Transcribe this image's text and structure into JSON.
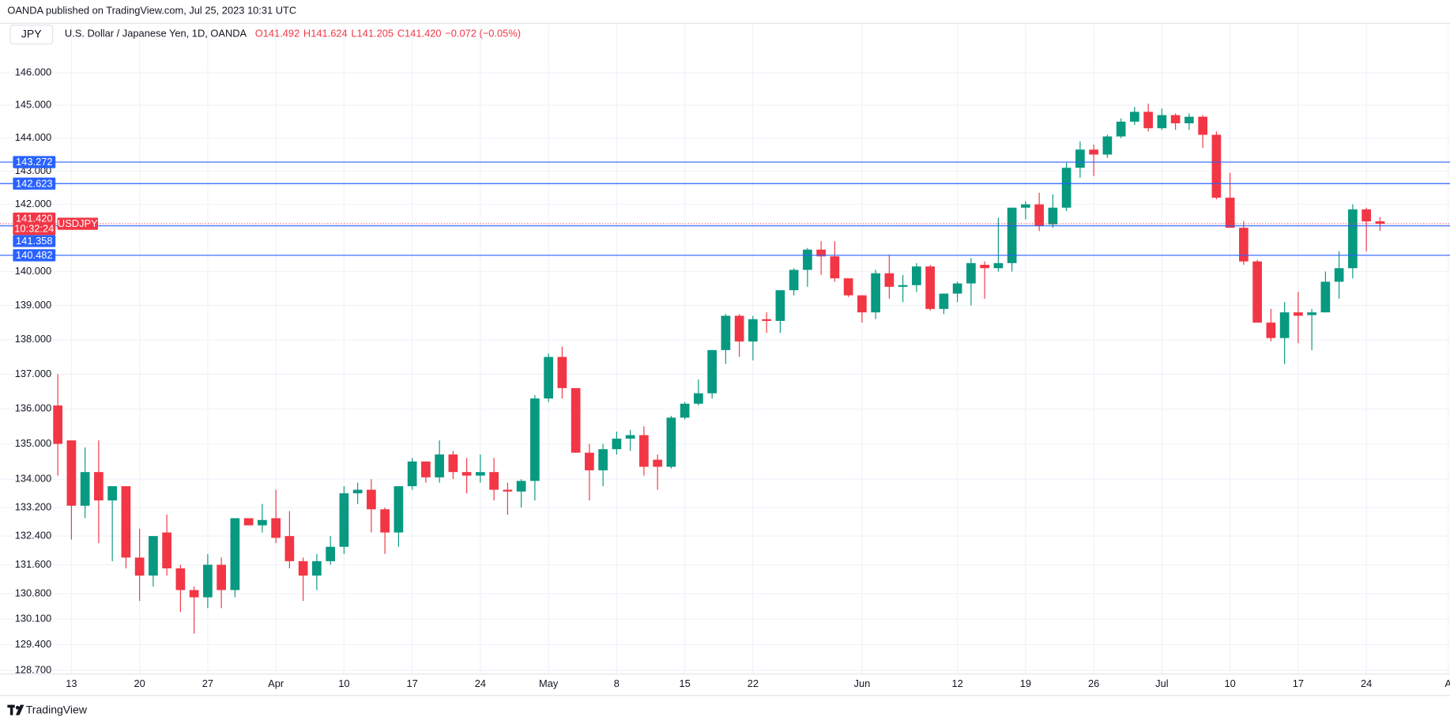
{
  "header": {
    "published": "OANDA published on TradingView.com, Jul 25, 2023 10:31 UTC"
  },
  "footer": {
    "brand": "TradingView"
  },
  "chart_data": {
    "type": "candlestick",
    "symbol_tag": "JPY",
    "title": "U.S. Dollar / Japanese Yen, 1D, OANDA",
    "legend": [
      {
        "value": 141.492,
        "label": "O141.492"
      },
      {
        "value": 141.624,
        "label": "H141.624"
      },
      {
        "value": 141.205,
        "label": "L141.205"
      },
      {
        "value": 141.42,
        "label": "C141.420"
      },
      {
        "value": -0.072,
        "label": "−0.072 (−0.05%)"
      }
    ],
    "symbol": "USDJPY",
    "up_color": "#089981",
    "down_color": "#f23645",
    "log": true,
    "grid": true,
    "ylim": [
      128.6,
      147.5
    ],
    "yticks": [
      {
        "value": 146,
        "label": "146.000"
      },
      {
        "value": 145,
        "label": "145.000"
      },
      {
        "value": 144,
        "label": "144.000"
      },
      {
        "value": 143,
        "label": "143.000"
      },
      {
        "value": 142,
        "label": "142.000"
      },
      {
        "value": 140,
        "label": "140.000"
      },
      {
        "value": 139,
        "label": "139.000"
      },
      {
        "value": 138,
        "label": "138.000"
      },
      {
        "value": 137,
        "label": "137.000"
      },
      {
        "value": 136,
        "label": "136.000"
      },
      {
        "value": 135,
        "label": "135.000"
      },
      {
        "value": 134,
        "label": "134.000"
      },
      {
        "value": 133.2,
        "label": "133.200"
      },
      {
        "value": 132.4,
        "label": "132.400"
      },
      {
        "value": 131.6,
        "label": "131.600"
      },
      {
        "value": 130.8,
        "label": "130.800"
      },
      {
        "value": 130.1,
        "label": "130.100"
      },
      {
        "value": 129.4,
        "label": "129.400"
      },
      {
        "value": 128.7,
        "label": "128.700"
      }
    ],
    "xticks": [
      {
        "value": "Mar 13",
        "label": "13"
      },
      {
        "value": "Mar 20",
        "label": "20"
      },
      {
        "value": "Mar 27",
        "label": "27"
      },
      {
        "value": "Apr 3",
        "label": "Apr"
      },
      {
        "value": "Apr 10",
        "label": "10"
      },
      {
        "value": "Apr 17",
        "label": "17"
      },
      {
        "value": "Apr 24",
        "label": "24"
      },
      {
        "value": "May 1",
        "label": "May"
      },
      {
        "value": "May 8",
        "label": "8"
      },
      {
        "value": "May 15",
        "label": "15"
      },
      {
        "value": "May 22",
        "label": "22"
      },
      {
        "value": "Jun 1",
        "label": "Jun"
      },
      {
        "value": "Jun 12",
        "label": "12"
      },
      {
        "value": "Jun 19",
        "label": "19"
      },
      {
        "value": "Jun 26",
        "label": "26"
      },
      {
        "value": "Jul 3",
        "label": "Jul"
      },
      {
        "value": "Jul 10",
        "label": "10"
      },
      {
        "value": "Jul 17",
        "label": "17"
      },
      {
        "value": "Jul 24",
        "label": "24"
      },
      {
        "value": "Aug 1",
        "label": "A"
      }
    ],
    "price_lines": {
      "color": "#2962ff",
      "values": [
        143.272,
        142.623,
        141.358,
        140.482
      ]
    },
    "last_price": {
      "value": 141.42,
      "label": "141.420",
      "countdown": "10:32:24"
    },
    "categories": [
      "Mar 10",
      "Mar 13",
      "Mar 14",
      "Mar 15",
      "Mar 16",
      "Mar 17",
      "Mar 20",
      "Mar 21",
      "Mar 22",
      "Mar 23",
      "Mar 24",
      "Mar 27",
      "Mar 28",
      "Mar 29",
      "Mar 30",
      "Mar 31",
      "Apr 3",
      "Apr 4",
      "Apr 5",
      "Apr 6",
      "Apr 7",
      "Apr 10",
      "Apr 11",
      "Apr 12",
      "Apr 13",
      "Apr 14",
      "Apr 17",
      "Apr 18",
      "Apr 19",
      "Apr 20",
      "Apr 21",
      "Apr 24",
      "Apr 25",
      "Apr 26",
      "Apr 27",
      "Apr 28",
      "May 1",
      "May 2",
      "May 3",
      "May 4",
      "May 5",
      "May 8",
      "May 9",
      "May 10",
      "May 11",
      "May 12",
      "May 15",
      "May 16",
      "May 17",
      "May 18",
      "May 19",
      "May 22",
      "May 23",
      "May 24",
      "May 25",
      "May 26",
      "May 29",
      "May 30",
      "May 31",
      "Jun 1",
      "Jun 2",
      "Jun 5",
      "Jun 6",
      "Jun 7",
      "Jun 8",
      "Jun 9",
      "Jun 12",
      "Jun 13",
      "Jun 14",
      "Jun 15",
      "Jun 16",
      "Jun 19",
      "Jun 20",
      "Jun 21",
      "Jun 22",
      "Jun 23",
      "Jun 26",
      "Jun 27",
      "Jun 28",
      "Jun 29",
      "Jun 30",
      "Jul 3",
      "Jul 4",
      "Jul 5",
      "Jul 6",
      "Jul 7",
      "Jul 10",
      "Jul 11",
      "Jul 12",
      "Jul 13",
      "Jul 14",
      "Jul 17",
      "Jul 18",
      "Jul 19",
      "Jul 20",
      "Jul 21",
      "Jul 24",
      "Jul 25"
    ],
    "open": [
      136.1,
      135.1,
      133.25,
      134.2,
      133.4,
      133.8,
      131.8,
      131.3,
      132.5,
      131.5,
      130.9,
      130.7,
      131.6,
      130.9,
      132.9,
      132.7,
      132.9,
      132.4,
      131.7,
      131.3,
      131.7,
      132.1,
      133.6,
      133.7,
      133.15,
      132.5,
      133.8,
      134.5,
      134.05,
      134.7,
      134.2,
      134.1,
      134.2,
      133.7,
      133.65,
      133.95,
      136.3,
      137.5,
      136.6,
      134.75,
      134.25,
      134.85,
      135.15,
      135.25,
      134.55,
      134.35,
      135.75,
      136.15,
      136.45,
      137.7,
      138.7,
      137.95,
      138.6,
      138.55,
      139.45,
      140.05,
      140.65,
      140.45,
      139.8,
      139.3,
      138.8,
      139.95,
      139.55,
      139.6,
      140.15,
      138.9,
      139.35,
      139.65,
      140.2,
      140.1,
      140.25,
      141.9,
      142.0,
      141.4,
      141.9,
      143.1,
      143.65,
      143.5,
      144.05,
      144.5,
      144.8,
      144.3,
      144.7,
      144.45,
      144.65,
      144.1,
      142.2,
      141.3,
      140.3,
      138.5,
      138.05,
      138.8,
      138.72,
      138.8,
      139.7,
      140.1,
      141.85,
      141.492
    ],
    "high": [
      137.0,
      135.1,
      134.9,
      135.1,
      133.8,
      133.8,
      132.6,
      132.4,
      133.0,
      131.6,
      131.0,
      131.9,
      131.8,
      132.9,
      132.9,
      133.3,
      133.7,
      133.1,
      131.8,
      131.9,
      132.4,
      133.8,
      133.9,
      134.0,
      133.2,
      133.8,
      134.6,
      134.5,
      135.1,
      134.8,
      134.6,
      134.7,
      134.6,
      133.9,
      134.0,
      136.4,
      137.6,
      137.8,
      136.6,
      135.0,
      135.0,
      135.35,
      135.4,
      135.5,
      134.7,
      135.8,
      136.2,
      136.85,
      137.7,
      138.75,
      138.75,
      138.7,
      138.8,
      139.45,
      140.1,
      140.7,
      140.9,
      140.9,
      139.8,
      139.3,
      140.05,
      140.5,
      139.9,
      140.25,
      140.2,
      139.35,
      139.7,
      140.4,
      140.3,
      141.6,
      141.9,
      142.1,
      142.35,
      142.3,
      143.25,
      143.9,
      143.8,
      144.1,
      144.6,
      144.95,
      145.05,
      144.9,
      144.75,
      144.75,
      144.7,
      144.2,
      142.95,
      141.5,
      140.35,
      138.9,
      139.1,
      139.4,
      138.9,
      140.0,
      140.6,
      142.0,
      141.9,
      141.624
    ],
    "low": [
      134.1,
      132.3,
      132.9,
      132.2,
      131.7,
      131.5,
      130.6,
      131.0,
      131.3,
      130.3,
      129.7,
      130.4,
      130.4,
      130.7,
      132.7,
      132.5,
      132.2,
      131.5,
      130.6,
      130.9,
      131.6,
      131.9,
      133.3,
      132.5,
      131.9,
      132.1,
      133.7,
      133.9,
      133.9,
      134.0,
      133.6,
      133.9,
      133.4,
      133.0,
      133.2,
      133.4,
      136.2,
      136.3,
      134.75,
      133.4,
      133.8,
      134.7,
      134.8,
      134.1,
      133.7,
      134.3,
      135.7,
      136.1,
      136.3,
      137.3,
      137.5,
      137.4,
      138.2,
      138.2,
      139.3,
      139.55,
      139.9,
      139.7,
      139.25,
      138.5,
      138.6,
      139.2,
      139.1,
      139.4,
      138.85,
      138.75,
      139.1,
      139.0,
      139.2,
      140.0,
      140.0,
      141.55,
      141.2,
      141.3,
      141.8,
      142.8,
      142.85,
      143.4,
      144.0,
      144.4,
      144.2,
      144.25,
      144.25,
      144.25,
      143.7,
      142.15,
      141.3,
      140.2,
      138.5,
      137.95,
      137.3,
      137.9,
      137.7,
      138.8,
      139.2,
      139.8,
      140.6,
      141.205
    ],
    "close": [
      135.0,
      133.25,
      134.2,
      133.4,
      133.8,
      131.8,
      131.3,
      132.4,
      131.5,
      130.9,
      130.7,
      131.6,
      130.9,
      132.9,
      132.7,
      132.85,
      132.35,
      131.7,
      131.3,
      131.7,
      132.1,
      133.6,
      133.7,
      133.15,
      132.5,
      133.8,
      134.5,
      134.05,
      134.7,
      134.2,
      134.1,
      134.2,
      133.7,
      133.65,
      133.95,
      136.3,
      137.5,
      136.6,
      134.75,
      134.25,
      134.85,
      135.15,
      135.25,
      134.35,
      134.35,
      135.75,
      136.15,
      136.45,
      137.7,
      138.7,
      137.95,
      138.6,
      138.55,
      139.45,
      140.05,
      140.65,
      140.45,
      139.8,
      139.3,
      138.8,
      139.95,
      139.55,
      139.6,
      140.15,
      138.9,
      139.35,
      139.65,
      140.25,
      140.1,
      140.25,
      141.9,
      142.0,
      141.35,
      141.9,
      143.1,
      143.65,
      143.5,
      144.05,
      144.5,
      144.8,
      144.3,
      144.7,
      144.45,
      144.65,
      144.1,
      142.2,
      141.3,
      140.3,
      138.5,
      138.05,
      138.8,
      138.7,
      138.8,
      139.7,
      140.1,
      141.85,
      141.49,
      141.42
    ]
  }
}
